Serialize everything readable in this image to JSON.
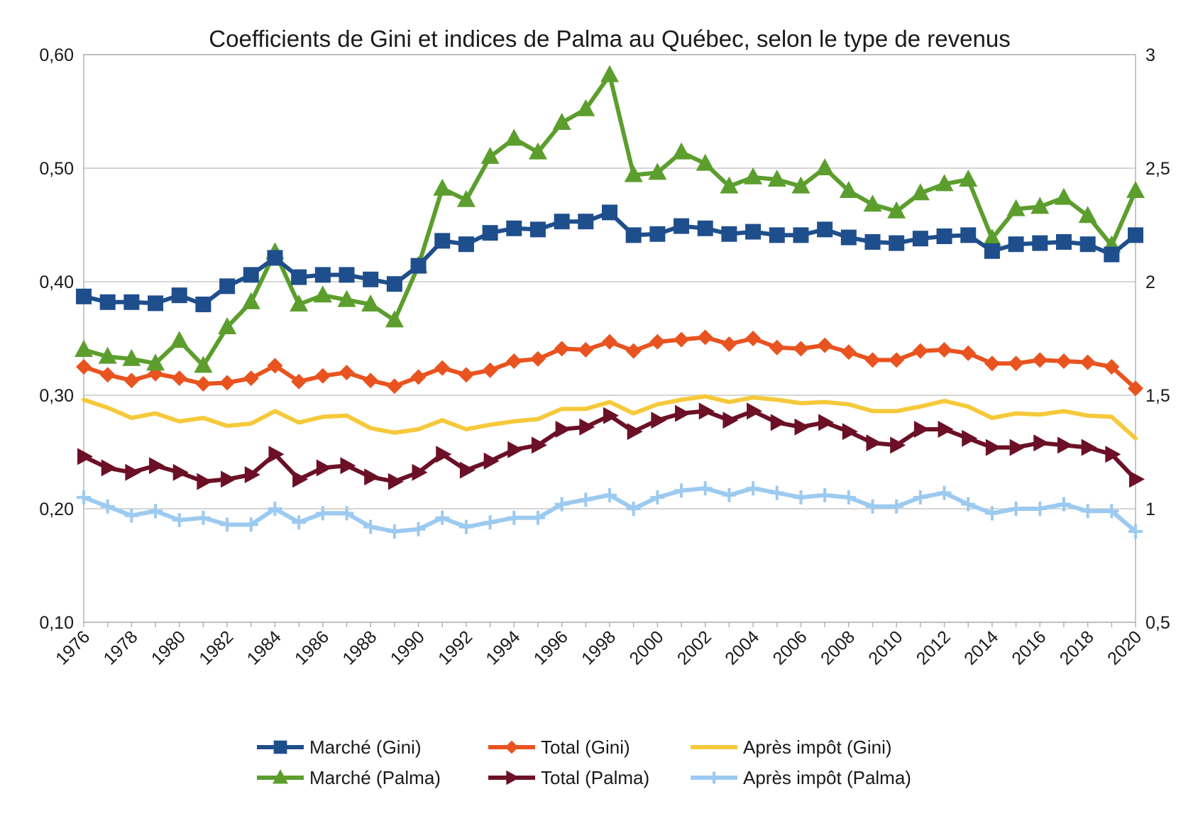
{
  "chart_data": {
    "type": "line",
    "title": "Coefficients de Gini et indices de Palma au Québec, selon le type de revenus",
    "xlabel": "",
    "ylabel": "",
    "ylabel_right": "",
    "x": [
      1976,
      1977,
      1978,
      1979,
      1980,
      1981,
      1982,
      1983,
      1984,
      1985,
      1986,
      1987,
      1988,
      1989,
      1990,
      1991,
      1992,
      1993,
      1994,
      1995,
      1996,
      1997,
      1998,
      1999,
      2000,
      2001,
      2002,
      2003,
      2004,
      2005,
      2006,
      2007,
      2008,
      2009,
      2010,
      2011,
      2012,
      2013,
      2014,
      2015,
      2016,
      2017,
      2018,
      2019,
      2020
    ],
    "x_tick_labels": [
      "1976",
      "1978",
      "1980",
      "1982",
      "1984",
      "1986",
      "1988",
      "1990",
      "1992",
      "1994",
      "1996",
      "1998",
      "2000",
      "2002",
      "2004",
      "2006",
      "2008",
      "2010",
      "2012",
      "2014",
      "2016",
      "2018",
      "2020"
    ],
    "xlim": [
      1976,
      2020
    ],
    "ylim_left": [
      0.1,
      0.6
    ],
    "ylim_right": [
      0.5,
      3
    ],
    "y_tick_labels_left": [
      "0,10",
      "0,20",
      "0,30",
      "0,40",
      "0,50",
      "0,60"
    ],
    "y_tick_labels_right": [
      "0,5",
      "1",
      "1,5",
      "2",
      "2,5",
      "3"
    ],
    "grid": true,
    "legend_position": "bottom",
    "series": [
      {
        "name": "Marché (Gini)",
        "axis": "left",
        "color": "#1f4e8c",
        "marker": "square",
        "values": [
          0.387,
          0.382,
          0.382,
          0.381,
          0.388,
          0.38,
          0.396,
          0.406,
          0.421,
          0.404,
          0.406,
          0.406,
          0.402,
          0.398,
          0.414,
          0.436,
          0.433,
          0.443,
          0.447,
          0.446,
          0.453,
          0.453,
          0.461,
          0.441,
          0.442,
          0.449,
          0.447,
          0.442,
          0.444,
          0.441,
          0.441,
          0.446,
          0.439,
          0.435,
          0.434,
          0.438,
          0.44,
          0.441,
          0.427,
          0.433,
          0.434,
          0.435,
          0.433,
          0.424,
          0.441
        ]
      },
      {
        "name": "Total (Gini)",
        "axis": "left",
        "color": "#e8531f",
        "marker": "diamond",
        "values": [
          0.325,
          0.318,
          0.313,
          0.319,
          0.315,
          0.31,
          0.311,
          0.315,
          0.326,
          0.312,
          0.317,
          0.32,
          0.313,
          0.308,
          0.316,
          0.324,
          0.318,
          0.322,
          0.33,
          0.332,
          0.341,
          0.34,
          0.347,
          0.339,
          0.347,
          0.349,
          0.351,
          0.345,
          0.35,
          0.342,
          0.341,
          0.344,
          0.338,
          0.331,
          0.331,
          0.339,
          0.34,
          0.337,
          0.328,
          0.328,
          0.331,
          0.33,
          0.329,
          0.325,
          0.306
        ]
      },
      {
        "name": "Après impôt (Gini)",
        "axis": "left",
        "color": "#f5c93a",
        "marker": "line",
        "values": [
          0.296,
          0.289,
          0.28,
          0.284,
          0.277,
          0.28,
          0.273,
          0.275,
          0.286,
          0.276,
          0.281,
          0.282,
          0.271,
          0.267,
          0.27,
          0.278,
          0.27,
          0.274,
          0.277,
          0.279,
          0.288,
          0.288,
          0.294,
          0.284,
          0.292,
          0.296,
          0.299,
          0.294,
          0.298,
          0.296,
          0.293,
          0.294,
          0.292,
          0.286,
          0.286,
          0.29,
          0.295,
          0.29,
          0.28,
          0.284,
          0.283,
          0.286,
          0.282,
          0.281,
          0.262
        ]
      },
      {
        "name": "Marché (Palma)",
        "axis": "right",
        "color": "#5c9e2e",
        "marker": "triangle",
        "values": [
          1.7,
          1.67,
          1.66,
          1.64,
          1.74,
          1.63,
          1.8,
          1.91,
          2.13,
          1.9,
          1.94,
          1.92,
          1.9,
          1.83,
          2.07,
          2.41,
          2.36,
          2.55,
          2.63,
          2.57,
          2.7,
          2.76,
          2.91,
          2.47,
          2.48,
          2.57,
          2.52,
          2.42,
          2.46,
          2.45,
          2.42,
          2.5,
          2.4,
          2.34,
          2.31,
          2.39,
          2.43,
          2.45,
          2.19,
          2.32,
          2.33,
          2.37,
          2.29,
          2.16,
          2.4
        ]
      },
      {
        "name": "Total (Palma)",
        "axis": "right",
        "color": "#6b1026",
        "marker": "arrow",
        "values": [
          1.23,
          1.18,
          1.16,
          1.19,
          1.16,
          1.12,
          1.13,
          1.15,
          1.24,
          1.13,
          1.18,
          1.19,
          1.14,
          1.12,
          1.16,
          1.24,
          1.17,
          1.21,
          1.26,
          1.28,
          1.35,
          1.36,
          1.41,
          1.34,
          1.39,
          1.42,
          1.43,
          1.39,
          1.43,
          1.38,
          1.36,
          1.38,
          1.34,
          1.29,
          1.28,
          1.35,
          1.35,
          1.31,
          1.27,
          1.27,
          1.29,
          1.28,
          1.27,
          1.24,
          1.13
        ]
      },
      {
        "name": "Après impôt (Palma)",
        "axis": "right",
        "color": "#9ccaf0",
        "marker": "plus",
        "values": [
          1.05,
          1.01,
          0.97,
          0.99,
          0.95,
          0.96,
          0.93,
          0.93,
          1.0,
          0.94,
          0.98,
          0.98,
          0.92,
          0.9,
          0.91,
          0.96,
          0.92,
          0.94,
          0.96,
          0.96,
          1.02,
          1.04,
          1.06,
          1.0,
          1.05,
          1.08,
          1.09,
          1.06,
          1.09,
          1.07,
          1.05,
          1.06,
          1.05,
          1.01,
          1.01,
          1.05,
          1.07,
          1.02,
          0.98,
          1.0,
          1.0,
          1.02,
          0.99,
          0.99,
          0.9
        ]
      }
    ]
  }
}
